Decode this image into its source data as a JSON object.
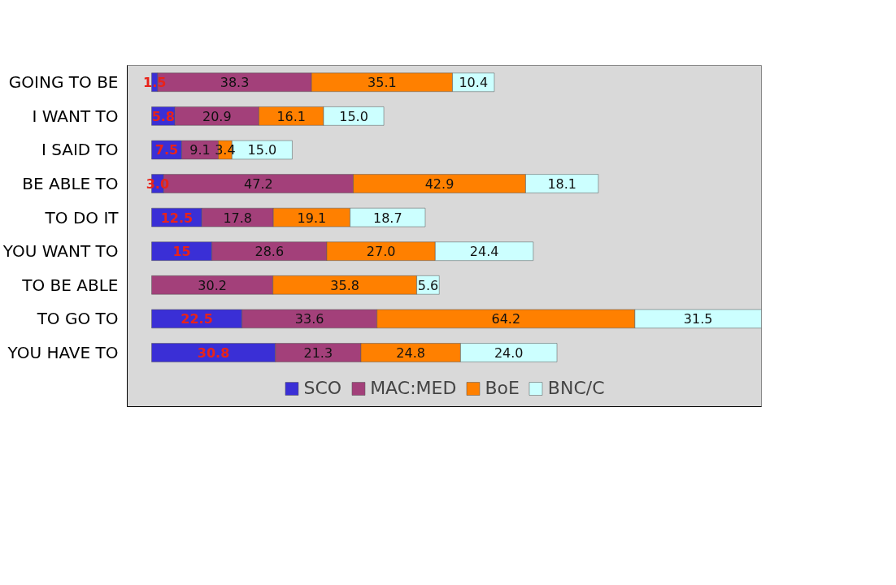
{
  "chart_data": {
    "type": "bar",
    "orientation": "horizontal",
    "stacked": true,
    "legend": "bottom",
    "tick_labels": "y",
    "categories": [
      "GOING TO BE",
      "I WANT TO",
      "I SAID TO",
      "BE ABLE TO",
      "TO DO IT",
      "YOU WANT TO",
      "TO BE ABLE",
      "TO GO TO",
      "YOU HAVE TO"
    ],
    "series": [
      {
        "name": "SCO",
        "color": "#3a2fd6",
        "values": [
          1.5,
          5.8,
          7.5,
          3.0,
          12.5,
          15,
          null,
          22.5,
          30.8
        ],
        "value_labels": [
          "1.5",
          "5.8",
          "7.5",
          "3.0",
          "12.5",
          "15",
          null,
          "22.5",
          "30.8"
        ]
      },
      {
        "name": "MAC:MED",
        "color": "#a3407a",
        "values": [
          38.3,
          20.9,
          9.1,
          47.2,
          17.8,
          28.6,
          30.2,
          33.6,
          21.3
        ],
        "value_labels": [
          "38.3",
          "20.9",
          "9.1",
          "47.2",
          "17.8",
          "28.6",
          "30.2",
          "33.6",
          "21.3"
        ]
      },
      {
        "name": "BoE",
        "color": "#ff8000",
        "values": [
          35.1,
          16.1,
          3.4,
          42.9,
          19.1,
          27.0,
          35.8,
          64.2,
          24.8
        ],
        "value_labels": [
          "35.1",
          "16.1",
          "3.4",
          "42.9",
          "19.1",
          "27.0",
          "35.8",
          "64.2",
          "24.8"
        ]
      },
      {
        "name": "BNC/C",
        "color": "#ccffff",
        "values": [
          10.4,
          15.0,
          15.0,
          18.1,
          18.7,
          24.4,
          5.6,
          31.5,
          24.0
        ],
        "value_labels": [
          "10.4",
          "15.0",
          "15.0",
          "18.1",
          "18.7",
          "24.4",
          "5.6",
          "31.5",
          "24.0"
        ]
      }
    ]
  }
}
